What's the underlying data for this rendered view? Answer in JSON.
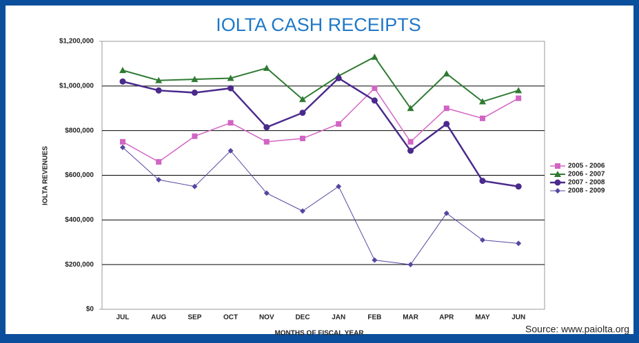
{
  "chart_data": {
    "type": "line",
    "title": "IOLTA CASH RECEIPTS",
    "xlabel": "MONTHS OF FISCAL YEAR",
    "ylabel": "IOLTA REVENUES",
    "source": "Source: www.paiolta.org",
    "categories": [
      "JUL",
      "AUG",
      "SEP",
      "OCT",
      "NOV",
      "DEC",
      "JAN",
      "FEB",
      "MAR",
      "APR",
      "MAY",
      "JUN"
    ],
    "series": [
      {
        "name": "2005 - 2006",
        "color": "#d264c4",
        "marker": "square",
        "line_width": 1.5,
        "values": [
          750000,
          660000,
          775000,
          835000,
          750000,
          765000,
          830000,
          990000,
          750000,
          900000,
          855000,
          945000
        ]
      },
      {
        "name": "2006 - 2007",
        "color": "#2f7a32",
        "marker": "triangle",
        "line_width": 2,
        "values": [
          1070000,
          1025000,
          1030000,
          1035000,
          1080000,
          940000,
          1045000,
          1130000,
          900000,
          1055000,
          930000,
          980000
        ]
      },
      {
        "name": "2007 - 2008",
        "color": "#4a2a8c",
        "marker": "circle",
        "line_width": 2.5,
        "values": [
          1020000,
          980000,
          970000,
          990000,
          815000,
          880000,
          1035000,
          935000,
          710000,
          830000,
          575000,
          550000
        ]
      },
      {
        "name": "2008 - 2009",
        "color": "#5546a0",
        "marker": "diamond",
        "line_width": 1,
        "values": [
          725000,
          580000,
          550000,
          710000,
          520000,
          440000,
          550000,
          220000,
          200000,
          430000,
          310000,
          295000
        ]
      }
    ],
    "ylim": [
      0,
      1200000
    ],
    "yticks": [
      {
        "value": 0,
        "label": "$0"
      },
      {
        "value": 200000,
        "label": "$200,000"
      },
      {
        "value": 400000,
        "label": "$400,000"
      },
      {
        "value": 600000,
        "label": "$600,000"
      },
      {
        "value": 800000,
        "label": "$800,000"
      },
      {
        "value": 1000000,
        "label": "$1,000,000"
      },
      {
        "value": 1200000,
        "label": "$1,200,000"
      }
    ],
    "grid": true,
    "legend": "right"
  }
}
